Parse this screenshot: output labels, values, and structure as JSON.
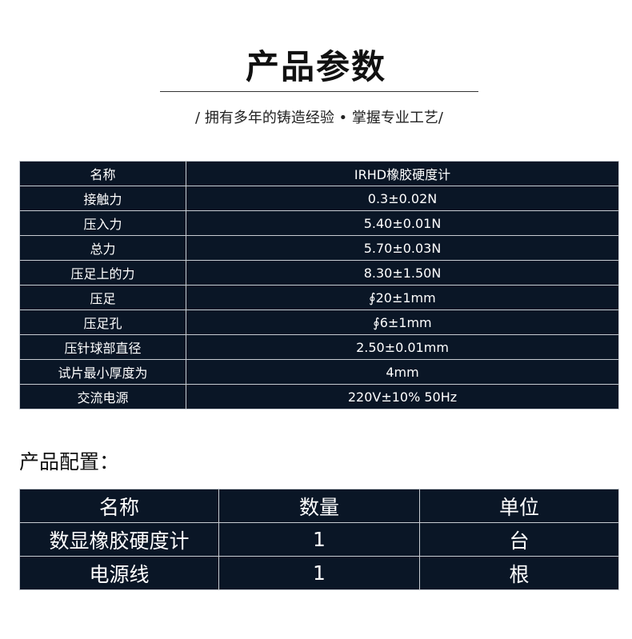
{
  "header": {
    "title": "产品参数",
    "subtitle": "/ 拥有多年的铸造经验 • 掌握专业工艺/"
  },
  "spec_table": {
    "rows": [
      {
        "key": "名称",
        "value": "IRHD橡胶硬度计"
      },
      {
        "key": "接触力",
        "value": "0.3±0.02N"
      },
      {
        "key": "压入力",
        "value": "5.40±0.01N"
      },
      {
        "key": "总力",
        "value": "5.70±0.03N"
      },
      {
        "key": "压足上的力",
        "value": "8.30±1.50N"
      },
      {
        "key": "压足",
        "value": "∮20±1mm"
      },
      {
        "key": "压足孔",
        "value": "∮6±1mm"
      },
      {
        "key": "压针球部直径",
        "value": "2.50±0.01mm"
      },
      {
        "key": "试片最小厚度为",
        "value": "4mm"
      },
      {
        "key": "交流电源",
        "value": "220V±10%  50Hz"
      }
    ]
  },
  "config": {
    "label": "产品配置：",
    "headers": [
      "名称",
      "数量",
      "单位"
    ],
    "rows": [
      [
        "数显橡胶硬度计",
        "1",
        "台"
      ],
      [
        "电源线",
        "1",
        "根"
      ]
    ]
  },
  "colors": {
    "table_bg": "#0a1626",
    "border": "#c8ccd2"
  }
}
